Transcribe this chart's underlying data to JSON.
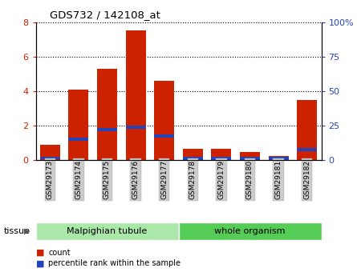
{
  "title": "GDS732 / 142108_at",
  "categories": [
    "GSM29173",
    "GSM29174",
    "GSM29175",
    "GSM29176",
    "GSM29177",
    "GSM29178",
    "GSM29179",
    "GSM29180",
    "GSM29181",
    "GSM29182"
  ],
  "count_values": [
    0.9,
    4.1,
    5.3,
    7.5,
    4.6,
    0.65,
    0.65,
    0.45,
    0.25,
    3.5
  ],
  "percentile_values_left_scale": [
    0.12,
    1.2,
    1.75,
    1.9,
    1.4,
    0.1,
    0.1,
    0.08,
    0.06,
    0.62
  ],
  "bar_color": "#cc2200",
  "percentile_color": "#2244bb",
  "ylim_left": [
    0,
    8
  ],
  "ylim_right": [
    0,
    100
  ],
  "yticks_left": [
    0,
    2,
    4,
    6,
    8
  ],
  "yticks_right": [
    0,
    25,
    50,
    75,
    100
  ],
  "yticklabels_right": [
    "0",
    "25",
    "50",
    "75",
    "100%"
  ],
  "grid_color": "black",
  "tissue_groups": [
    {
      "label": "Malpighian tubule",
      "start": 0,
      "end": 4,
      "color": "#aae8aa"
    },
    {
      "label": "whole organism",
      "start": 5,
      "end": 9,
      "color": "#55cc55"
    }
  ],
  "tissue_label": "tissue",
  "legend_count_label": "count",
  "legend_percentile_label": "percentile rank within the sample",
  "bar_width": 0.7,
  "tick_bg_color": "#cccccc",
  "left_tick_color": "#cc2200",
  "right_tick_color": "#2244bb",
  "blue_bar_height": 0.18
}
